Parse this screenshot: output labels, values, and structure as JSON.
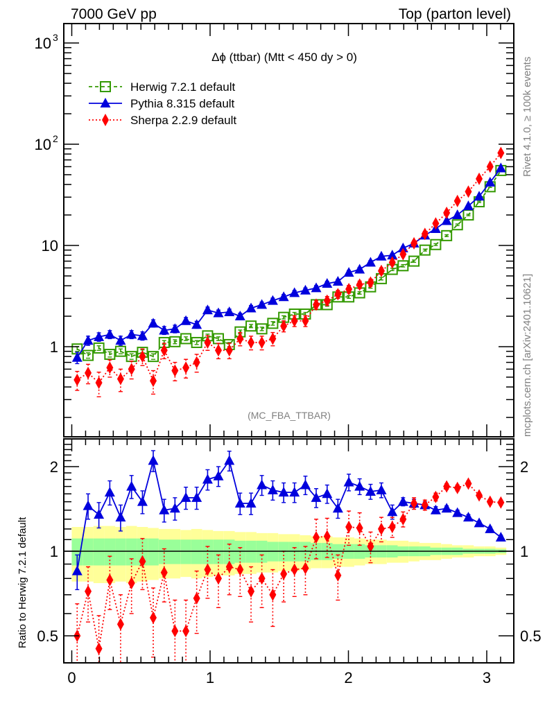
{
  "header": {
    "left": "7000 GeV pp",
    "right": "Top (parton level)"
  },
  "side_text": {
    "rivet": "Rivet 4.1.0, ≥ 100k events",
    "mcplots": "mcplots.cern.ch [arXiv:2401.10621]"
  },
  "chart_data": [
    {
      "type": "line",
      "panel": "main",
      "title": "Δϕ (ttbar) (Mtt < 450 dy > 0)",
      "watermark": "(MC_FBA_TTBAR)",
      "xlabel": "",
      "ylabel": "",
      "yscale": "log",
      "xlim": [
        -0.05,
        3.2
      ],
      "ylim": [
        0.15,
        1500
      ],
      "yticks": [
        {
          "value": 1000,
          "label": "10",
          "sup": "3"
        },
        {
          "value": 100,
          "label": "10",
          "sup": "2"
        },
        {
          "value": 10,
          "label": "10",
          "sup": ""
        },
        {
          "value": 1,
          "label": "1",
          "sup": ""
        }
      ],
      "legend_position": "top-left",
      "x": [
        0.039,
        0.118,
        0.196,
        0.275,
        0.353,
        0.432,
        0.511,
        0.589,
        0.668,
        0.746,
        0.825,
        0.903,
        0.982,
        1.06,
        1.139,
        1.217,
        1.296,
        1.374,
        1.453,
        1.532,
        1.61,
        1.689,
        1.767,
        1.846,
        1.924,
        2.003,
        2.081,
        2.16,
        2.238,
        2.317,
        2.395,
        2.474,
        2.553,
        2.631,
        2.71,
        2.788,
        2.867,
        2.945,
        3.024,
        3.102
      ],
      "series": [
        {
          "name": "Herwig 7.2.1 default",
          "color": "#339900",
          "marker": "open-square",
          "linestyle": "dashed",
          "values": [
            0.95,
            0.82,
            0.97,
            0.84,
            0.9,
            0.8,
            0.88,
            0.8,
            1.1,
            1.12,
            1.2,
            1.1,
            1.28,
            1.2,
            1.05,
            1.4,
            1.6,
            1.5,
            1.7,
            1.95,
            2.1,
            2.1,
            2.6,
            2.6,
            3.1,
            3.1,
            3.4,
            3.9,
            4.7,
            5.8,
            6.3,
            7.0,
            9.0,
            10.2,
            12.5,
            16.0,
            20.0,
            27.0,
            38.0,
            55.0
          ],
          "errors": [
            0.05,
            0.05,
            0.05,
            0.05,
            0.05,
            0.05,
            0.05,
            0.05,
            0.05,
            0.05,
            0.05,
            0.05,
            0.05,
            0.05,
            0.05,
            0.06,
            0.06,
            0.06,
            0.07,
            0.07,
            0.08,
            0.08,
            0.09,
            0.09,
            0.1,
            0.1,
            0.1,
            0.12,
            0.14,
            0.16,
            0.17,
            0.18,
            0.2,
            0.22,
            0.26,
            0.3,
            0.35,
            0.45,
            0.6,
            0.8
          ]
        },
        {
          "name": "Pythia 8.315 default",
          "color": "#0000dd",
          "marker": "filled-triangle",
          "linestyle": "solid",
          "values": [
            0.78,
            1.15,
            1.25,
            1.32,
            1.15,
            1.32,
            1.28,
            1.7,
            1.45,
            1.5,
            1.8,
            1.65,
            2.3,
            2.15,
            2.2,
            2.0,
            2.4,
            2.6,
            2.85,
            3.1,
            3.4,
            3.6,
            3.8,
            4.2,
            4.4,
            5.4,
            5.8,
            6.8,
            7.8,
            8.0,
            9.4,
            10.5,
            12.6,
            14.6,
            17.5,
            20.0,
            24.5,
            30.5,
            42.0,
            58.0
          ],
          "errors": [
            0.1,
            0.12,
            0.12,
            0.12,
            0.12,
            0.12,
            0.12,
            0.14,
            0.13,
            0.13,
            0.14,
            0.13,
            0.16,
            0.15,
            0.15,
            0.14,
            0.15,
            0.16,
            0.17,
            0.18,
            0.19,
            0.2,
            0.21,
            0.22,
            0.23,
            0.26,
            0.27,
            0.3,
            0.32,
            0.33,
            0.36,
            0.39,
            0.43,
            0.48,
            0.54,
            0.6,
            0.7,
            0.8,
            1.0,
            1.2
          ]
        },
        {
          "name": "Sherpa 2.2.9 default",
          "color": "#ff0000",
          "marker": "filled-diamond",
          "linestyle": "dotted",
          "values": [
            0.47,
            0.55,
            0.44,
            0.62,
            0.48,
            0.6,
            0.8,
            0.46,
            0.92,
            0.58,
            0.62,
            0.7,
            1.1,
            0.92,
            0.92,
            1.2,
            1.1,
            1.1,
            1.2,
            1.6,
            1.8,
            1.8,
            2.6,
            2.85,
            3.3,
            3.7,
            4.1,
            4.3,
            5.6,
            6.8,
            8.2,
            10.5,
            13.0,
            16.5,
            21.0,
            27.5,
            34.0,
            45.5,
            60.0,
            82.0
          ],
          "errors": [
            0.1,
            0.12,
            0.12,
            0.12,
            0.12,
            0.12,
            0.15,
            0.12,
            0.16,
            0.12,
            0.13,
            0.14,
            0.18,
            0.16,
            0.16,
            0.18,
            0.17,
            0.17,
            0.18,
            0.2,
            0.22,
            0.22,
            0.26,
            0.28,
            0.3,
            0.32,
            0.34,
            0.35,
            0.4,
            0.45,
            0.5,
            0.6,
            0.7,
            0.8,
            0.95,
            1.1,
            1.3,
            1.6,
            2.0,
            2.5
          ]
        }
      ]
    },
    {
      "type": "line",
      "panel": "ratio",
      "xlabel": "",
      "ylabel": "Ratio to Herwig 7.2.1 default",
      "yscale": "log",
      "ylim": [
        0.42,
        2.5
      ],
      "yticks": [
        {
          "value": 2,
          "label": "2"
        },
        {
          "value": 1,
          "label": "1"
        },
        {
          "value": 0.5,
          "label": "0.5"
        }
      ],
      "xticks": [
        {
          "value": 0,
          "label": "0"
        },
        {
          "value": 1,
          "label": "1"
        },
        {
          "value": 2,
          "label": "2"
        },
        {
          "value": 3,
          "label": "3"
        }
      ],
      "reference_line": 1,
      "bands": {
        "inner_color": "#99ff99",
        "outer_color": "#ffff99",
        "inner_halfwidth": [
          0.11,
          0.11,
          0.11,
          0.11,
          0.11,
          0.11,
          0.11,
          0.11,
          0.1,
          0.1,
          0.1,
          0.1,
          0.1,
          0.1,
          0.1,
          0.09,
          0.09,
          0.09,
          0.08,
          0.08,
          0.08,
          0.08,
          0.07,
          0.07,
          0.06,
          0.06,
          0.06,
          0.05,
          0.05,
          0.05,
          0.04,
          0.04,
          0.04,
          0.03,
          0.03,
          0.03,
          0.02,
          0.02,
          0.02,
          0.015
        ],
        "outer_halfwidth": [
          0.22,
          0.22,
          0.23,
          0.23,
          0.22,
          0.23,
          0.22,
          0.21,
          0.2,
          0.2,
          0.19,
          0.2,
          0.19,
          0.18,
          0.18,
          0.17,
          0.17,
          0.16,
          0.16,
          0.15,
          0.15,
          0.14,
          0.13,
          0.13,
          0.12,
          0.12,
          0.11,
          0.1,
          0.1,
          0.09,
          0.09,
          0.08,
          0.07,
          0.07,
          0.06,
          0.05,
          0.05,
          0.04,
          0.04,
          0.03
        ]
      },
      "series": [
        {
          "name": "Pythia 8.315 default",
          "color": "#0000dd",
          "values": [
            0.85,
            1.45,
            1.35,
            1.62,
            1.32,
            1.7,
            1.5,
            2.1,
            1.4,
            1.42,
            1.55,
            1.55,
            1.8,
            1.85,
            2.1,
            1.48,
            1.48,
            1.72,
            1.65,
            1.62,
            1.62,
            1.72,
            1.55,
            1.6,
            1.42,
            1.76,
            1.7,
            1.63,
            1.65,
            1.38,
            1.5,
            1.48,
            1.46,
            1.4,
            1.42,
            1.37,
            1.32,
            1.26,
            1.2,
            1.12
          ],
          "errors": [
            0.12,
            0.15,
            0.14,
            0.16,
            0.14,
            0.16,
            0.14,
            0.18,
            0.13,
            0.13,
            0.14,
            0.14,
            0.15,
            0.15,
            0.17,
            0.13,
            0.13,
            0.14,
            0.13,
            0.13,
            0.13,
            0.13,
            0.12,
            0.12,
            0.11,
            0.12,
            0.11,
            0.1,
            0.1,
            0.08,
            0.05,
            0.05,
            0.04,
            0.04,
            0.03,
            0.03,
            0.03,
            0.02,
            0.02,
            0.02
          ]
        },
        {
          "name": "Sherpa 2.2.9 default",
          "color": "#ff0000",
          "values": [
            0.5,
            0.72,
            0.45,
            0.79,
            0.55,
            0.77,
            0.92,
            0.58,
            0.84,
            0.52,
            0.52,
            0.68,
            0.86,
            0.8,
            0.88,
            0.86,
            0.72,
            0.8,
            0.7,
            0.83,
            0.86,
            0.87,
            1.12,
            1.13,
            0.82,
            1.22,
            1.21,
            1.04,
            1.2,
            1.22,
            1.3,
            1.48,
            1.46,
            1.56,
            1.7,
            1.68,
            1.74,
            1.58,
            1.5,
            1.49
          ],
          "errors": [
            0.15,
            0.16,
            0.14,
            0.17,
            0.15,
            0.17,
            0.19,
            0.16,
            0.18,
            0.15,
            0.15,
            0.17,
            0.18,
            0.17,
            0.18,
            0.17,
            0.16,
            0.17,
            0.16,
            0.17,
            0.17,
            0.17,
            0.18,
            0.18,
            0.15,
            0.17,
            0.16,
            0.13,
            0.12,
            0.1,
            0.08,
            0.07,
            0.06,
            0.05,
            0.04,
            0.04,
            0.04,
            0.03,
            0.03,
            0.03
          ]
        }
      ]
    }
  ]
}
